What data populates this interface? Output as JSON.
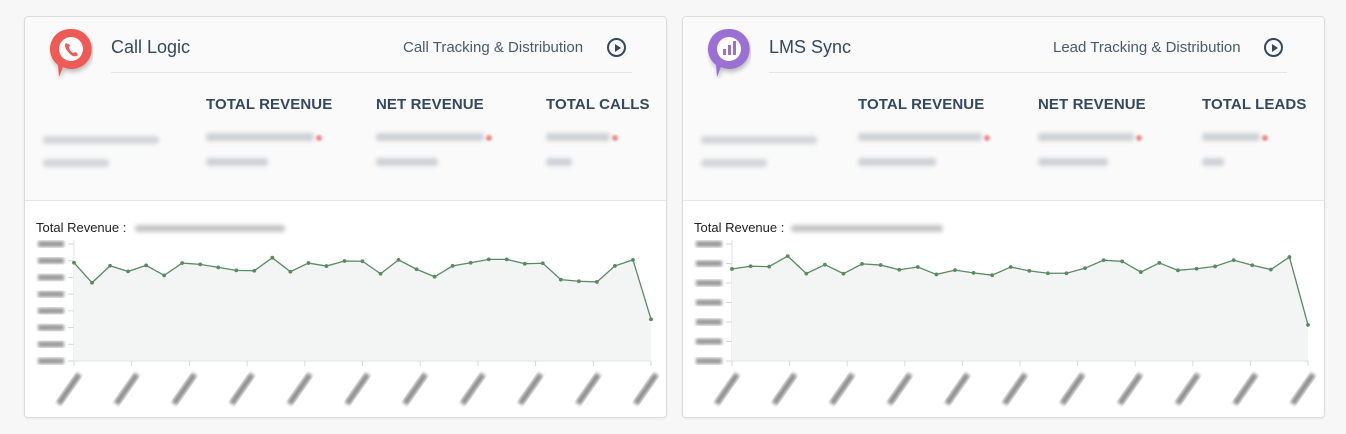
{
  "cards": [
    {
      "app_name": "Call Logic",
      "subtitle": "Call Tracking & Distribution",
      "logo_icon": "phone-icon",
      "accent": "#ee5a55",
      "stat_headers": [
        "TOTAL REVENUE",
        "NET REVENUE",
        "TOTAL CALLS"
      ],
      "chart_title": "Total Revenue :"
    },
    {
      "app_name": "LMS Sync",
      "subtitle": "Lead Tracking & Distribution",
      "logo_icon": "bar-chart-icon",
      "accent": "#9b6fd4",
      "stat_headers": [
        "TOTAL REVENUE",
        "NET REVENUE",
        "TOTAL LEADS"
      ],
      "chart_title": "Total Revenue :"
    }
  ],
  "chart_data": [
    {
      "type": "area",
      "title": "Total Revenue",
      "xlabel": "",
      "ylabel": "",
      "ylim": [
        0,
        7
      ],
      "y_ticks_count": 8,
      "x_ticks_count": 11,
      "line_color": "#5a8a64",
      "fill_color": "#f3f5f4",
      "grid": false,
      "values": [
        5.88,
        4.68,
        5.7,
        5.36,
        5.72,
        5.12,
        5.86,
        5.78,
        5.6,
        5.42,
        5.4,
        6.18,
        5.34,
        5.86,
        5.68,
        5.98,
        5.97,
        5.22,
        6.05,
        5.49,
        5.04,
        5.69,
        5.88,
        6.08,
        6.08,
        5.82,
        5.85,
        4.87,
        4.77,
        4.73,
        5.69,
        6.05,
        2.5
      ]
    },
    {
      "type": "area",
      "title": "Total Revenue",
      "xlabel": "",
      "ylabel": "",
      "ylim": [
        0,
        6
      ],
      "y_ticks_count": 7,
      "x_ticks_count": 11,
      "line_color": "#5a8a64",
      "fill_color": "#f3f5f4",
      "grid": false,
      "values": [
        4.72,
        4.86,
        4.84,
        5.38,
        4.48,
        4.94,
        4.48,
        4.98,
        4.92,
        4.68,
        4.82,
        4.44,
        4.66,
        4.52,
        4.4,
        4.82,
        4.62,
        4.5,
        4.5,
        4.76,
        5.17,
        5.11,
        4.56,
        5.03,
        4.65,
        4.73,
        4.85,
        5.17,
        4.91,
        4.69,
        5.33,
        1.85
      ]
    }
  ]
}
